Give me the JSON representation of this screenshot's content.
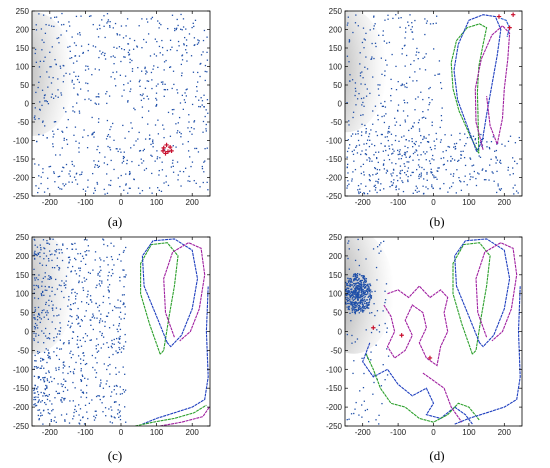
{
  "chart_data": [
    {
      "panel": "(a)",
      "type": "scatter",
      "xlim": [
        -250,
        250
      ],
      "ylim": [
        -250,
        250
      ],
      "xticks": [
        -200,
        -100,
        0,
        100,
        200
      ],
      "yticks": [
        250,
        200,
        150,
        100,
        50,
        0,
        -50,
        -100,
        -150,
        -200,
        -250
      ],
      "grid": false,
      "particle_color": "#1f4fa8",
      "particle_count": 700,
      "particle_distribution": "uniform",
      "dark_region_center": [
        -245,
        80
      ],
      "tracks": [],
      "markers": {
        "color": "#c8102e",
        "points": [
          [
            120,
            -120
          ],
          [
            128,
            -112
          ],
          [
            132,
            -130
          ],
          [
            138,
            -118
          ],
          [
            125,
            -135
          ],
          [
            142,
            -128
          ],
          [
            118,
            -128
          ]
        ]
      }
    },
    {
      "panel": "(b)",
      "type": "scatter",
      "xlim": [
        -250,
        250
      ],
      "ylim": [
        -250,
        250
      ],
      "xticks": [
        -200,
        -100,
        0,
        100,
        200
      ],
      "yticks": [
        250,
        200,
        150,
        100,
        50,
        0,
        -50,
        -100,
        -150,
        -200,
        -250
      ],
      "grid": false,
      "particle_color": "#1f4fa8",
      "particle_count": 650,
      "particle_distribution": "left-and-bottom",
      "dark_region_center": [
        -245,
        90
      ],
      "tracks": [
        {
          "color": "#2ca02c",
          "points": [
            [
              128,
              -135
            ],
            [
              100,
              -80
            ],
            [
              72,
              -20
            ],
            [
              55,
              40
            ],
            [
              50,
              110
            ],
            [
              65,
              170
            ],
            [
              95,
              205
            ],
            [
              130,
              215
            ],
            [
              150,
              205
            ],
            [
              140,
              160
            ],
            [
              128,
              100
            ],
            [
              124,
              30
            ],
            [
              126,
              -40
            ],
            [
              128,
              -135
            ]
          ]
        },
        {
          "color": "#1f3fbf",
          "points": [
            [
              122,
              -130
            ],
            [
              95,
              -60
            ],
            [
              68,
              10
            ],
            [
              58,
              90
            ],
            [
              70,
              160
            ],
            [
              100,
              225
            ],
            [
              140,
              240
            ],
            [
              175,
              235
            ],
            [
              190,
              200
            ],
            [
              180,
              130
            ],
            [
              165,
              50
            ],
            [
              150,
              -30
            ],
            [
              138,
              -100
            ],
            [
              122,
              -130
            ]
          ]
        },
        {
          "color": "#a020a0",
          "points": [
            [
              140,
              -125
            ],
            [
              120,
              -50
            ],
            [
              118,
              40
            ],
            [
              135,
              120
            ],
            [
              165,
              185
            ],
            [
              195,
              210
            ],
            [
              215,
              190
            ],
            [
              210,
              120
            ],
            [
              200,
              40
            ],
            [
              195,
              -40
            ],
            [
              180,
              -110
            ],
            [
              160,
              -60
            ],
            [
              150,
              20
            ]
          ]
        },
        {
          "color": "#2255cc",
          "points": [
            [
              190,
              230
            ],
            [
              205,
              225
            ],
            [
              215,
              205
            ],
            [
              208,
              180
            ]
          ]
        }
      ],
      "markers": {
        "color": "#c8102e",
        "points": [
          [
            185,
            235
          ],
          [
            225,
            240
          ],
          [
            215,
            205
          ]
        ]
      }
    },
    {
      "panel": "(c)",
      "type": "scatter",
      "xlim": [
        -250,
        250
      ],
      "ylim": [
        -250,
        250
      ],
      "xticks": [
        -200,
        -100,
        0,
        100,
        200
      ],
      "yticks": [
        250,
        200,
        150,
        100,
        50,
        0,
        -50,
        -100,
        -150,
        -200,
        -250
      ],
      "grid": false,
      "particle_color": "#1f4fa8",
      "particle_count": 750,
      "particle_distribution": "left",
      "dark_region_center": [
        -245,
        105
      ],
      "tracks": [
        {
          "color": "#2ca02c",
          "points": [
            [
              110,
              -60
            ],
            [
              80,
              20
            ],
            [
              55,
              100
            ],
            [
              55,
              180
            ],
            [
              85,
              230
            ],
            [
              130,
              235
            ],
            [
              160,
              200
            ],
            [
              150,
              120
            ],
            [
              135,
              40
            ],
            [
              120,
              -50
            ],
            [
              110,
              -60
            ]
          ]
        },
        {
          "color": "#1f3fbf",
          "points": [
            [
              130,
              -30
            ],
            [
              100,
              40
            ],
            [
              65,
              120
            ],
            [
              60,
              200
            ],
            [
              90,
              240
            ],
            [
              150,
              245
            ],
            [
              200,
              215
            ],
            [
              215,
              140
            ],
            [
              200,
              60
            ],
            [
              170,
              -10
            ],
            [
              140,
              -40
            ],
            [
              130,
              -30
            ]
          ]
        },
        {
          "color": "#a020a0",
          "points": [
            [
              150,
              -15
            ],
            [
              125,
              50
            ],
            [
              120,
              140
            ],
            [
              145,
              210
            ],
            [
              190,
              235
            ],
            [
              225,
              220
            ],
            [
              235,
              150
            ],
            [
              220,
              60
            ],
            [
              195,
              0
            ],
            [
              165,
              -25
            ]
          ]
        },
        {
          "color": "#1f3fbf",
          "points": [
            [
              60,
              -245
            ],
            [
              100,
              -230
            ],
            [
              150,
              -215
            ],
            [
              200,
              -200
            ],
            [
              235,
              -180
            ],
            [
              245,
              -120
            ],
            [
              240,
              0
            ],
            [
              245,
              120
            ]
          ]
        },
        {
          "color": "#2ca02c",
          "points": [
            [
              40,
              -250
            ],
            [
              90,
              -240
            ],
            [
              150,
              -230
            ],
            [
              205,
              -215
            ],
            [
              240,
              -195
            ]
          ]
        },
        {
          "color": "#a020a0",
          "points": [
            [
              110,
              -250
            ],
            [
              170,
              -240
            ],
            [
              230,
              -225
            ],
            [
              248,
              -200
            ]
          ]
        }
      ],
      "markers": {
        "color": "#c8102e",
        "points": []
      }
    },
    {
      "panel": "(d)",
      "type": "scatter",
      "xlim": [
        -250,
        250
      ],
      "ylim": [
        -250,
        250
      ],
      "xticks": [
        -200,
        -100,
        0,
        100,
        200
      ],
      "yticks": [
        250,
        200,
        150,
        100,
        50,
        0,
        -50,
        -100,
        -150,
        -200,
        -250
      ],
      "grid": false,
      "particle_color": "#1f4fa8",
      "particle_count": 600,
      "particle_distribution": "cluster-left",
      "dark_region_center": [
        -225,
        105
      ],
      "tracks": [
        {
          "color": "#a020a0",
          "points": [
            [
              -140,
              70
            ],
            [
              -120,
              40
            ],
            [
              -110,
              0
            ],
            [
              -130,
              -40
            ],
            [
              -110,
              -70
            ],
            [
              -80,
              -50
            ],
            [
              -60,
              -10
            ],
            [
              -80,
              30
            ],
            [
              -60,
              70
            ],
            [
              -30,
              50
            ],
            [
              -20,
              10
            ],
            [
              -40,
              -30
            ],
            [
              -20,
              -70
            ],
            [
              10,
              -90
            ],
            [
              20,
              -40
            ],
            [
              40,
              0
            ],
            [
              30,
              50
            ],
            [
              40,
              90
            ],
            [
              20,
              110
            ],
            [
              -10,
              90
            ],
            [
              -40,
              120
            ],
            [
              -70,
              90
            ],
            [
              -100,
              110
            ],
            [
              -130,
              100
            ]
          ]
        },
        {
          "color": "#1f3fbf",
          "points": [
            [
              -180,
              -30
            ],
            [
              -200,
              -80
            ],
            [
              -170,
              -120
            ],
            [
              -130,
              -100
            ],
            [
              -100,
              -140
            ],
            [
              -60,
              -170
            ],
            [
              -20,
              -150
            ],
            [
              0,
              -190
            ],
            [
              -20,
              -220
            ],
            [
              20,
              -230
            ],
            [
              60,
              -200
            ],
            [
              90,
              -220
            ],
            [
              110,
              -245
            ]
          ]
        },
        {
          "color": "#2ca02c",
          "points": [
            [
              -190,
              -60
            ],
            [
              -170,
              -100
            ],
            [
              -150,
              -150
            ],
            [
              -120,
              -190
            ],
            [
              -80,
              -200
            ],
            [
              -40,
              -230
            ],
            [
              0,
              -240
            ],
            [
              40,
              -220
            ],
            [
              70,
              -190
            ],
            [
              100,
              -200
            ],
            [
              130,
              -235
            ]
          ]
        },
        {
          "color": "#a020a0",
          "points": [
            [
              -30,
              -110
            ],
            [
              0,
              -130
            ],
            [
              30,
              -150
            ],
            [
              50,
              -200
            ],
            [
              80,
              -240
            ]
          ]
        },
        {
          "color": "#2ca02c",
          "points": [
            [
              110,
              -60
            ],
            [
              80,
              20
            ],
            [
              55,
              100
            ],
            [
              55,
              180
            ],
            [
              85,
              230
            ],
            [
              130,
              235
            ],
            [
              160,
              200
            ],
            [
              150,
              120
            ],
            [
              135,
              40
            ],
            [
              120,
              -50
            ],
            [
              110,
              -60
            ]
          ]
        },
        {
          "color": "#1f3fbf",
          "points": [
            [
              130,
              -30
            ],
            [
              100,
              40
            ],
            [
              65,
              120
            ],
            [
              60,
              200
            ],
            [
              90,
              240
            ],
            [
              150,
              245
            ],
            [
              200,
              215
            ],
            [
              215,
              140
            ],
            [
              200,
              60
            ],
            [
              170,
              -10
            ],
            [
              140,
              -40
            ],
            [
              130,
              -30
            ]
          ]
        },
        {
          "color": "#a020a0",
          "points": [
            [
              150,
              -15
            ],
            [
              125,
              50
            ],
            [
              120,
              140
            ],
            [
              145,
              210
            ],
            [
              190,
              235
            ],
            [
              225,
              220
            ],
            [
              235,
              150
            ],
            [
              220,
              60
            ],
            [
              195,
              0
            ],
            [
              165,
              -25
            ]
          ]
        },
        {
          "color": "#1f3fbf",
          "points": [
            [
              60,
              -245
            ],
            [
              100,
              -230
            ],
            [
              150,
              -215
            ],
            [
              200,
              -200
            ],
            [
              235,
              -180
            ],
            [
              245,
              -120
            ],
            [
              240,
              0
            ],
            [
              245,
              120
            ]
          ]
        }
      ],
      "markers": {
        "color": "#c8102e",
        "points": [
          [
            -170,
            10
          ],
          [
            -90,
            -10
          ],
          [
            -10,
            -70
          ]
        ]
      }
    }
  ]
}
